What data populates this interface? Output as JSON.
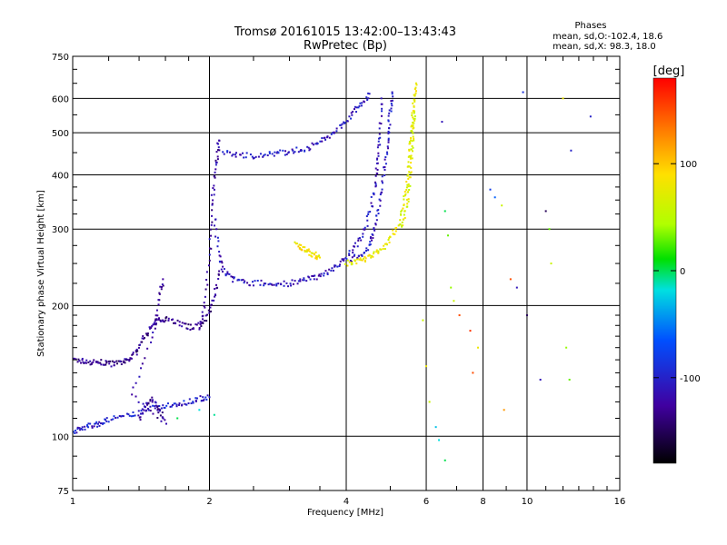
{
  "chart_data": {
    "type": "scatter",
    "title": "Tromsø 20161015 13:42:00–13:43:43",
    "subtitle": "RwPretec (Bp)",
    "xlabel": "Frequency [MHz]",
    "ylabel": "Stationary phase Virtual Height [km]",
    "x_scale": "log",
    "y_scale": "log",
    "xlim": [
      1,
      16
    ],
    "ylim": [
      75,
      750
    ],
    "grid": true,
    "x_major_ticks": [
      1,
      2,
      4,
      6,
      8,
      10,
      16
    ],
    "x_major_tick_labels": [
      "1",
      "2",
      "4",
      "6",
      "8",
      "10",
      "16"
    ],
    "y_major_ticks": [
      75,
      100,
      200,
      300,
      400,
      500,
      600,
      750
    ],
    "y_major_tick_labels": [
      "75",
      "100",
      "200",
      "300",
      "400",
      "500",
      "600",
      "750"
    ],
    "legend": {
      "title": "Phases",
      "lines": [
        "mean, sd,O:-102.4, 18.6",
        "mean, sd,X:  98.3, 18.0"
      ]
    },
    "colorbar": {
      "label": "[deg]",
      "range": [
        -180,
        180
      ],
      "ticks": [
        100,
        0,
        -100
      ],
      "tick_labels": [
        "100",
        "0",
        "-100"
      ],
      "colors": [
        "#ff0000",
        "#ffa000",
        "#ffff00",
        "#00e000",
        "#00e0e0",
        "#0050ff",
        "#4000a0",
        "#000000"
      ]
    },
    "series": [
      {
        "traces": [
          {
            "phase": -130,
            "points": [
              [
                1.0,
                150
              ],
              [
                1.05,
                149
              ],
              [
                1.1,
                148
              ],
              [
                1.15,
                148
              ],
              [
                1.2,
                147
              ],
              [
                1.25,
                147
              ],
              [
                1.3,
                148
              ],
              [
                1.35,
                152
              ],
              [
                1.4,
                160
              ],
              [
                1.45,
                172
              ],
              [
                1.5,
                180
              ],
              [
                1.55,
                185
              ],
              [
                1.6,
                187
              ],
              [
                1.7,
                183
              ],
              [
                1.8,
                178
              ],
              [
                1.9,
                180
              ],
              [
                2.0,
                190
              ],
              [
                2.05,
                210
              ],
              [
                2.1,
                240
              ]
            ]
          },
          {
            "phase": -120,
            "points": [
              [
                1.9,
                175
              ],
              [
                1.95,
                200
              ],
              [
                2.0,
                260
              ],
              [
                2.02,
                330
              ],
              [
                2.05,
                390
              ],
              [
                2.08,
                440
              ],
              [
                2.1,
                480
              ]
            ]
          },
          {
            "phase": -105,
            "points": [
              [
                2.15,
                450
              ],
              [
                2.3,
                445
              ],
              [
                2.5,
                443
              ],
              [
                2.7,
                445
              ],
              [
                2.9,
                450
              ],
              [
                3.1,
                455
              ],
              [
                3.3,
                462
              ],
              [
                3.5,
                475
              ],
              [
                3.7,
                495
              ],
              [
                3.9,
                520
              ],
              [
                4.1,
                550
              ],
              [
                4.3,
                580
              ],
              [
                4.5,
                615
              ]
            ]
          },
          {
            "phase": -110,
            "points": [
              [
                2.05,
                320
              ],
              [
                2.1,
                260
              ],
              [
                2.15,
                240
              ],
              [
                2.25,
                230
              ],
              [
                2.4,
                226
              ],
              [
                2.6,
                225
              ],
              [
                2.8,
                224
              ],
              [
                3.0,
                225
              ],
              [
                3.2,
                228
              ],
              [
                3.4,
                232
              ],
              [
                3.6,
                238
              ],
              [
                3.8,
                246
              ],
              [
                4.0,
                258
              ],
              [
                4.2,
                275
              ],
              [
                4.4,
                300
              ],
              [
                4.55,
                340
              ],
              [
                4.65,
                390
              ],
              [
                4.7,
                440
              ],
              [
                4.75,
                500
              ],
              [
                4.78,
                600
              ]
            ]
          },
          {
            "phase": -108,
            "points": [
              [
                4.1,
                255
              ],
              [
                4.3,
                262
              ],
              [
                4.5,
                275
              ],
              [
                4.6,
                295
              ],
              [
                4.7,
                330
              ],
              [
                4.8,
                380
              ],
              [
                4.9,
                440
              ],
              [
                4.95,
                500
              ],
              [
                5.0,
                560
              ],
              [
                5.05,
                620
              ]
            ]
          },
          {
            "phase": -100,
            "points": [
              [
                1.0,
                103
              ],
              [
                1.05,
                104
              ],
              [
                1.1,
                106
              ],
              [
                1.15,
                107
              ],
              [
                1.2,
                109
              ],
              [
                1.3,
                111
              ],
              [
                1.4,
                113
              ],
              [
                1.5,
                116
              ],
              [
                1.6,
                117
              ],
              [
                1.7,
                119
              ],
              [
                1.8,
                120
              ],
              [
                1.9,
                122
              ],
              [
                2.0,
                123
              ]
            ]
          },
          {
            "phase": -125,
            "points": [
              [
                1.4,
                110
              ],
              [
                1.45,
                117
              ],
              [
                1.5,
                122
              ],
              [
                1.55,
                115
              ],
              [
                1.6,
                108
              ],
              [
                1.35,
                125
              ],
              [
                1.5,
                170
              ],
              [
                1.55,
                205
              ],
              [
                1.58,
                230
              ]
            ]
          }
        ]
      },
      {
        "traces": [
          {
            "phase": 75,
            "points": [
              [
                4.0,
                250
              ],
              [
                4.2,
                252
              ],
              [
                4.4,
                256
              ],
              [
                4.6,
                262
              ],
              [
                4.8,
                270
              ],
              [
                5.0,
                285
              ],
              [
                5.2,
                305
              ],
              [
                5.35,
                340
              ],
              [
                5.45,
                380
              ],
              [
                5.5,
                430
              ],
              [
                5.55,
                480
              ],
              [
                5.6,
                540
              ],
              [
                5.65,
                600
              ],
              [
                5.7,
                650
              ]
            ]
          },
          {
            "phase": 70,
            "points": [
              [
                5.3,
                300
              ],
              [
                5.4,
                330
              ],
              [
                5.5,
                370
              ],
              [
                5.55,
                420
              ],
              [
                5.6,
                470
              ],
              [
                5.62,
                520
              ],
              [
                5.65,
                560
              ]
            ]
          },
          {
            "phase": 85,
            "points": [
              [
                3.1,
                278
              ],
              [
                3.2,
                272
              ],
              [
                3.3,
                266
              ],
              [
                3.4,
                262
              ],
              [
                3.5,
                258
              ]
            ]
          }
        ]
      }
    ],
    "scatter_points": [
      [
        6.5,
        530,
        -110
      ],
      [
        6.6,
        330,
        0
      ],
      [
        6.7,
        290,
        30
      ],
      [
        6.8,
        220,
        40
      ],
      [
        6.9,
        205,
        60
      ],
      [
        7.1,
        190,
        150
      ],
      [
        7.5,
        175,
        160
      ],
      [
        7.8,
        160,
        80
      ],
      [
        8.3,
        370,
        -80
      ],
      [
        8.5,
        355,
        -60
      ],
      [
        8.8,
        340,
        60
      ],
      [
        9.2,
        230,
        150
      ],
      [
        9.5,
        220,
        -110
      ],
      [
        9.8,
        620,
        -90
      ],
      [
        10.0,
        190,
        -150
      ],
      [
        11.0,
        330,
        -150
      ],
      [
        11.2,
        300,
        30
      ],
      [
        11.3,
        250,
        60
      ],
      [
        12.0,
        600,
        80
      ],
      [
        12.2,
        160,
        40
      ],
      [
        12.5,
        455,
        -100
      ],
      [
        13.8,
        545,
        -100
      ],
      [
        6.3,
        105,
        -30
      ],
      [
        6.4,
        98,
        -20
      ],
      [
        6.6,
        88,
        0
      ],
      [
        5.9,
        185,
        60
      ],
      [
        6.0,
        145,
        80
      ],
      [
        6.1,
        120,
        60
      ],
      [
        7.6,
        140,
        150
      ],
      [
        8.9,
        115,
        120
      ],
      [
        10.7,
        135,
        -110
      ],
      [
        12.4,
        135,
        30
      ],
      [
        1.9,
        115,
        -20
      ],
      [
        2.05,
        112,
        -10
      ],
      [
        1.7,
        110,
        0
      ]
    ]
  }
}
